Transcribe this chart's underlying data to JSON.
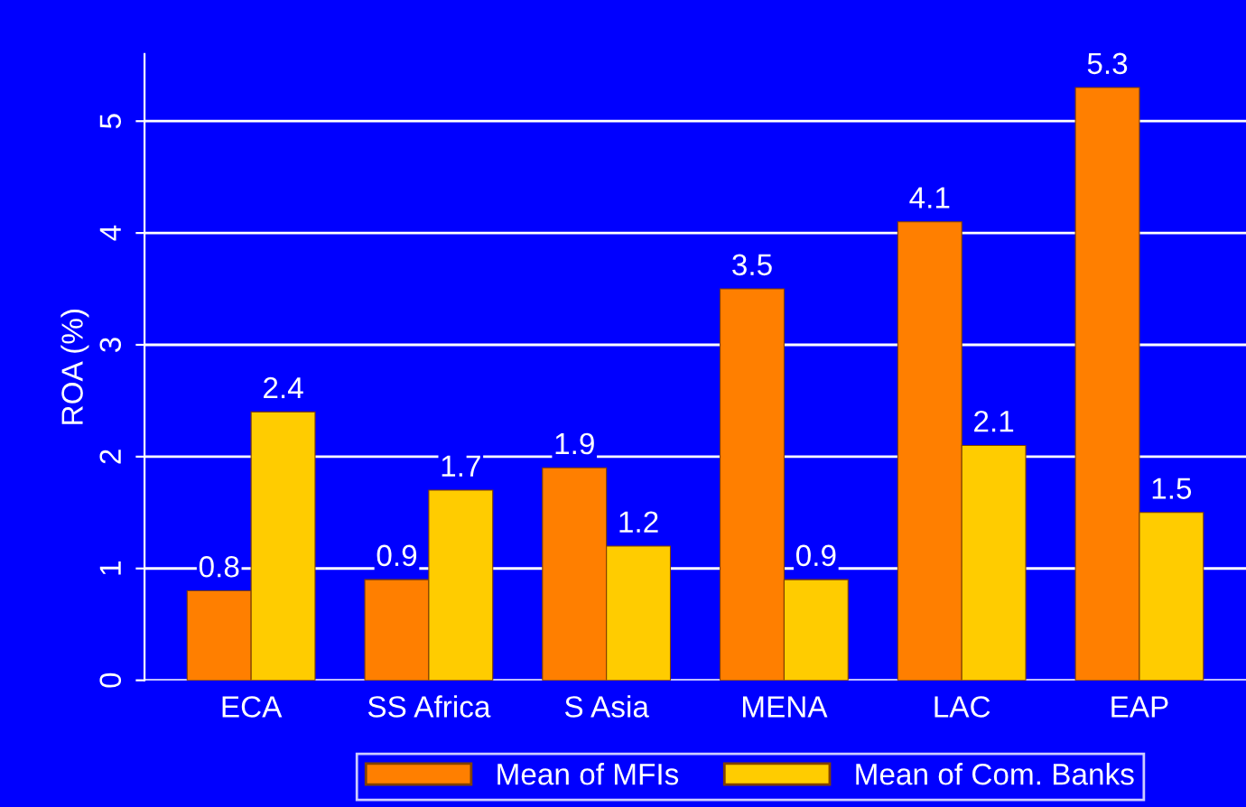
{
  "chart_data": {
    "type": "bar",
    "ylabel": "ROA (%)",
    "categories": [
      "ECA",
      "SS Africa",
      "S Asia",
      "MENA",
      "LAC",
      "EAP"
    ],
    "series": [
      {
        "name": "Mean of MFIs",
        "color": "#ff7f00",
        "values": [
          0.8,
          0.9,
          1.9,
          3.5,
          4.1,
          5.3
        ]
      },
      {
        "name": "Mean of Com. Banks",
        "color": "#ffcc00",
        "values": [
          2.4,
          1.7,
          1.2,
          0.9,
          2.1,
          1.5
        ]
      }
    ],
    "ylim": [
      0,
      5.6
    ],
    "yticks": [
      0,
      1,
      2,
      3,
      4,
      5
    ],
    "grid": "y",
    "data_labels": true,
    "legend": "bottom"
  }
}
